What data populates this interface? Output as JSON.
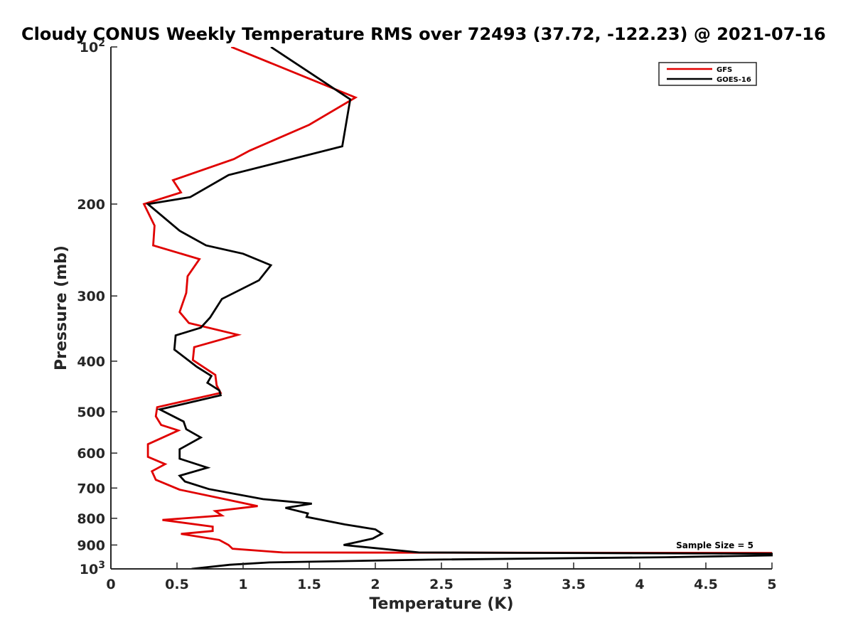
{
  "chart_data": {
    "type": "line",
    "title": "Cloudy CONUS Weekly Temperature RMS over 72493 (37.72, -122.23) @ 2021-07-16",
    "xlabel": "Temperature (K)",
    "ylabel": "Pressure (mb)",
    "xlim": [
      0,
      5
    ],
    "ylim": [
      1000,
      100
    ],
    "y_scale": "log",
    "y_reversed": true,
    "grid": false,
    "legend_position": "top-right",
    "x_ticks": [
      0,
      0.5,
      1,
      1.5,
      2,
      2.5,
      3,
      3.5,
      4,
      4.5,
      5
    ],
    "x_tick_labels": [
      "0",
      "0.5",
      "1",
      "1.5",
      "2",
      "2.5",
      "3",
      "3.5",
      "4",
      "4.5",
      "5"
    ],
    "y_ticks": [
      100,
      200,
      300,
      400,
      500,
      600,
      700,
      800,
      900,
      1000
    ],
    "y_tick_labels": [
      {
        "base": "10",
        "exp": "2"
      },
      {
        "base": "200",
        "exp": ""
      },
      {
        "base": "300",
        "exp": ""
      },
      {
        "base": "400",
        "exp": ""
      },
      {
        "base": "500",
        "exp": ""
      },
      {
        "base": "600",
        "exp": ""
      },
      {
        "base": "700",
        "exp": ""
      },
      {
        "base": "800",
        "exp": ""
      },
      {
        "base": "900",
        "exp": ""
      },
      {
        "base": "10",
        "exp": "3"
      }
    ],
    "annotation": "Sample Size = 5",
    "series": [
      {
        "name": "GFS",
        "color": "#e00000",
        "points": [
          [
            0.91,
            100
          ],
          [
            1.85,
            125
          ],
          [
            1.5,
            141
          ],
          [
            1.05,
            158
          ],
          [
            0.93,
            164
          ],
          [
            0.47,
            180
          ],
          [
            0.53,
            190
          ],
          [
            0.25,
            200
          ],
          [
            0.33,
            220
          ],
          [
            0.32,
            240
          ],
          [
            0.67,
            255
          ],
          [
            0.58,
            275
          ],
          [
            0.57,
            296
          ],
          [
            0.52,
            322
          ],
          [
            0.59,
            338
          ],
          [
            0.96,
            356
          ],
          [
            0.63,
            376
          ],
          [
            0.62,
            398
          ],
          [
            0.79,
            425
          ],
          [
            0.8,
            445
          ],
          [
            0.83,
            460
          ],
          [
            0.35,
            490
          ],
          [
            0.34,
            510
          ],
          [
            0.38,
            530
          ],
          [
            0.51,
            543
          ],
          [
            0.28,
            577
          ],
          [
            0.28,
            610
          ],
          [
            0.41,
            630
          ],
          [
            0.31,
            650
          ],
          [
            0.34,
            675
          ],
          [
            0.52,
            705
          ],
          [
            0.86,
            735
          ],
          [
            1.11,
            758
          ],
          [
            0.79,
            775
          ],
          [
            0.84,
            790
          ],
          [
            0.39,
            806
          ],
          [
            0.77,
            830
          ],
          [
            0.77,
            846
          ],
          [
            0.53,
            857
          ],
          [
            0.82,
            880
          ],
          [
            0.89,
            900
          ],
          [
            0.92,
            915
          ],
          [
            1.3,
            930
          ],
          [
            2.5,
            931
          ],
          [
            5.0,
            932
          ]
        ]
      },
      {
        "name": "GOES-16",
        "color": "#000000",
        "points": [
          [
            1.21,
            100
          ],
          [
            1.81,
            126
          ],
          [
            1.75,
            155
          ],
          [
            0.89,
            176
          ],
          [
            0.6,
            194
          ],
          [
            0.28,
            200
          ],
          [
            0.52,
            225
          ],
          [
            0.72,
            240
          ],
          [
            1.0,
            249
          ],
          [
            1.21,
            262
          ],
          [
            1.12,
            280
          ],
          [
            0.84,
            304
          ],
          [
            0.75,
            330
          ],
          [
            0.68,
            345
          ],
          [
            0.49,
            357
          ],
          [
            0.48,
            380
          ],
          [
            0.65,
            410
          ],
          [
            0.76,
            427
          ],
          [
            0.73,
            440
          ],
          [
            0.82,
            455
          ],
          [
            0.83,
            465
          ],
          [
            0.37,
            495
          ],
          [
            0.55,
            522
          ],
          [
            0.57,
            540
          ],
          [
            0.68,
            560
          ],
          [
            0.52,
            590
          ],
          [
            0.52,
            615
          ],
          [
            0.73,
            640
          ],
          [
            0.52,
            663
          ],
          [
            0.56,
            680
          ],
          [
            0.74,
            703
          ],
          [
            1.15,
            735
          ],
          [
            1.52,
            750
          ],
          [
            1.32,
            764
          ],
          [
            1.49,
            783
          ],
          [
            1.48,
            795
          ],
          [
            1.77,
            822
          ],
          [
            2.0,
            840
          ],
          [
            2.05,
            856
          ],
          [
            1.98,
            875
          ],
          [
            1.76,
            900
          ],
          [
            2.33,
            930
          ],
          [
            5.0,
            935
          ],
          [
            5.0,
            942
          ],
          [
            4.2,
            950
          ],
          [
            2.4,
            960
          ],
          [
            1.2,
            972
          ],
          [
            0.9,
            982
          ],
          [
            0.61,
            1000
          ]
        ]
      }
    ]
  }
}
